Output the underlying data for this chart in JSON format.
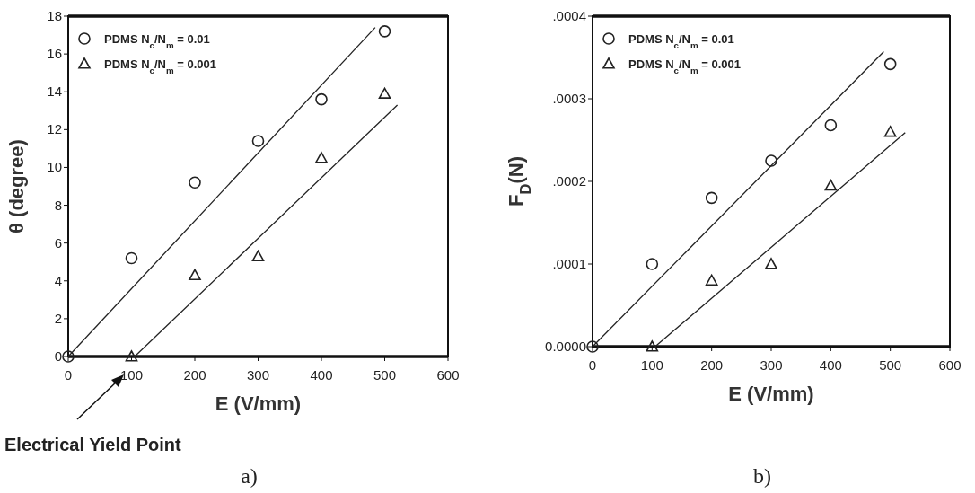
{
  "chart_data": [
    {
      "type": "scatter",
      "xlabel": "E (V/mm)",
      "ylabel": "θ (degree)",
      "xlim": [
        0,
        600
      ],
      "ylim": [
        0,
        18
      ],
      "xticks": [
        0,
        100,
        200,
        300,
        400,
        500,
        600
      ],
      "yticks": [
        0,
        2,
        4,
        6,
        8,
        10,
        12,
        14,
        16,
        18
      ],
      "legend": "top left",
      "grid": false,
      "series": [
        {
          "name": "PDMS N$_{c}$/N$_{m}$ = 0.01",
          "color": "#222222",
          "marker": "circle",
          "x": [
            0,
            100,
            200,
            300,
            400,
            500
          ],
          "values": [
            0,
            5.2,
            9.2,
            11.4,
            13.6,
            17.2
          ]
        },
        {
          "name": "PDMS N$_{c}$/N$_{m}$ = 0.001",
          "color": "#222222",
          "marker": "triangle",
          "x": [
            100,
            200,
            300,
            400,
            500
          ],
          "values": [
            0,
            4.3,
            5.3,
            10.5,
            13.9
          ]
        },
        {
          "type": "line",
          "color": "#222222",
          "marker": "none",
          "line_style": "solid",
          "x": [
            0,
            485
          ],
          "values": [
            0,
            17.4
          ]
        },
        {
          "type": "line",
          "color": "#222222",
          "marker": "none",
          "line_style": "solid",
          "x": [
            105,
            520
          ],
          "values": [
            0,
            13.3
          ]
        }
      ],
      "title": "a)",
      "annotations": [
        "Electrical Yield Point"
      ]
    },
    {
      "type": "scatter",
      "xlabel": "E (V/mm)",
      "ylabel": "F$_{D}$(N)",
      "xlim": [
        0,
        600
      ],
      "ylim": [
        0,
        0.0004
      ],
      "xticks": [
        0,
        100,
        200,
        300,
        400,
        500,
        600
      ],
      "yticks": [
        {
          "value": 0,
          "label": "0.0000"
        },
        {
          "value": 0.0001,
          "label": ".0001"
        },
        {
          "value": 0.0002,
          "label": ".0002"
        },
        {
          "value": 0.0003,
          "label": ".0003"
        },
        {
          "value": 0.0004,
          "label": ".0004"
        }
      ],
      "legend": "top left",
      "grid": false,
      "series": [
        {
          "name": "PDMS N$_{c}$/N$_{m}$ = 0.01",
          "color": "#222222",
          "marker": "circle",
          "x": [
            0,
            100,
            200,
            300,
            400,
            500
          ],
          "values": [
            0,
            0.0001,
            0.00018,
            0.000225,
            0.000268,
            0.000342
          ]
        },
        {
          "name": "PDMS N$_{c}$/N$_{m}$ = 0.001",
          "color": "#222222",
          "marker": "triangle",
          "x": [
            100,
            200,
            300,
            400,
            500
          ],
          "values": [
            0,
            8e-05,
            0.0001,
            0.000195,
            0.00026
          ]
        },
        {
          "type": "line",
          "color": "#222222",
          "marker": "none",
          "line_style": "solid",
          "x": [
            0,
            489
          ],
          "values": [
            0,
            0.000357
          ]
        },
        {
          "type": "line",
          "color": "#222222",
          "marker": "none",
          "line_style": "solid",
          "x": [
            105,
            525
          ],
          "values": [
            0,
            0.000259
          ]
        }
      ],
      "title": "b)"
    }
  ]
}
